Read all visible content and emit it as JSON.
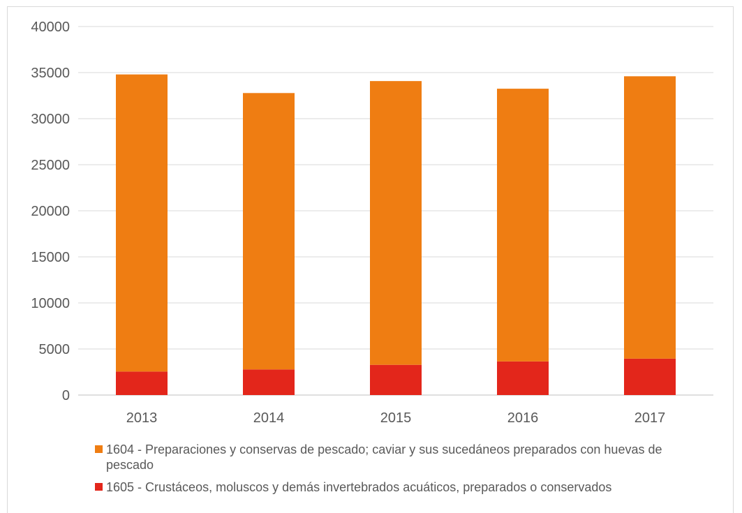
{
  "chart_data": {
    "type": "bar",
    "stacked": true,
    "categories": [
      "2013",
      "2014",
      "2015",
      "2016",
      "2017"
    ],
    "series": [
      {
        "name": "1605 - Crustáceos, moluscos y demás invertebrados acuáticos, preparados o conservados",
        "color": "#e3261b",
        "values": [
          2550,
          2780,
          3280,
          3650,
          3950
        ]
      },
      {
        "name": "1604 - Preparaciones y conservas de pescado; caviar y sus sucedáneos preparados con huevas de pescado",
        "color": "#ef7d12",
        "values": [
          32250,
          30000,
          30800,
          29600,
          30650
        ]
      }
    ],
    "yticks": [
      "0",
      "5000",
      "10000",
      "15000",
      "20000",
      "25000",
      "30000",
      "35000",
      "40000"
    ],
    "ylim": [
      0,
      40000
    ],
    "grid": true,
    "legend_position": "bottom",
    "title": "",
    "xlabel": "",
    "ylabel": ""
  },
  "legend": {
    "items": [
      {
        "label": "1604 - Preparaciones y conservas de pescado; caviar y sus sucedáneos preparados con huevas de pescado",
        "color": "#ef7d12"
      },
      {
        "label": "1605 - Crustáceos, moluscos y demás invertebrados acuáticos, preparados o conservados",
        "color": "#e3261b"
      }
    ]
  }
}
